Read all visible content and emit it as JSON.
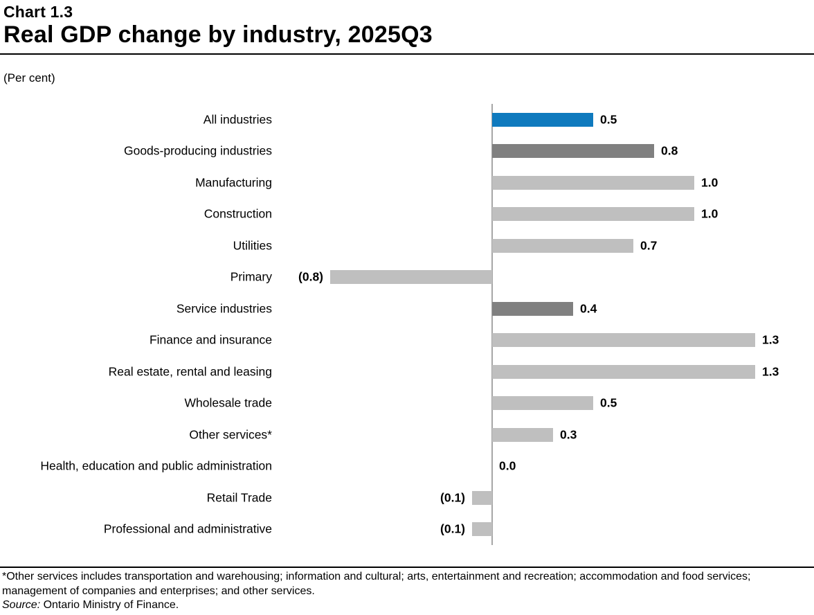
{
  "header": {
    "chart_number": "Chart 1.3",
    "title": "Real GDP change by industry, 2025Q3",
    "unit_label": "(Per cent)"
  },
  "chart_data": {
    "type": "bar",
    "orientation": "horizontal",
    "title": "Real GDP change by industry, 2025Q3",
    "unit": "Per cent",
    "xlim": [
      -0.8,
      1.6
    ],
    "axis_position": "zero-baseline-vertical",
    "grid": false,
    "legend": false,
    "palette": {
      "accent": "#0f7abe",
      "dark": "#808080",
      "light": "#bfbfbf",
      "axis": "#a6a6a6"
    },
    "bars": [
      {
        "label": "All industries",
        "value": 0.5,
        "display": "0.5",
        "color": "accent"
      },
      {
        "label": "Goods-producing industries",
        "value": 0.8,
        "display": "0.8",
        "color": "dark"
      },
      {
        "label": "Manufacturing",
        "value": 1.0,
        "display": "1.0",
        "color": "light"
      },
      {
        "label": "Construction",
        "value": 1.0,
        "display": "1.0",
        "color": "light"
      },
      {
        "label": "Utilities",
        "value": 0.7,
        "display": "0.7",
        "color": "light"
      },
      {
        "label": "Primary",
        "value": -0.8,
        "display": "(0.8)",
        "color": "light"
      },
      {
        "label": "Service industries",
        "value": 0.4,
        "display": "0.4",
        "color": "dark"
      },
      {
        "label": "Finance and insurance",
        "value": 1.3,
        "display": "1.3",
        "color": "light"
      },
      {
        "label": "Real estate, rental and leasing",
        "value": 1.3,
        "display": "1.3",
        "color": "light"
      },
      {
        "label": "Wholesale trade",
        "value": 0.5,
        "display": "0.5",
        "color": "light"
      },
      {
        "label": "Other services*",
        "value": 0.3,
        "display": "0.3",
        "color": "light"
      },
      {
        "label": "Health, education and public administration",
        "value": 0.0,
        "display": "0.0",
        "color": "light"
      },
      {
        "label": "Retail Trade",
        "value": -0.1,
        "display": "(0.1)",
        "color": "light"
      },
      {
        "label": "Professional and administrative",
        "value": -0.1,
        "display": "(0.1)",
        "color": "light"
      }
    ]
  },
  "footnote": {
    "note": "*Other services includes transportation and warehousing; information and cultural; arts, entertainment and recreation; accommodation and food services; management of companies and enterprises; and other services.",
    "source_label": "Source:",
    "source_text": " Ontario Ministry of Finance."
  }
}
